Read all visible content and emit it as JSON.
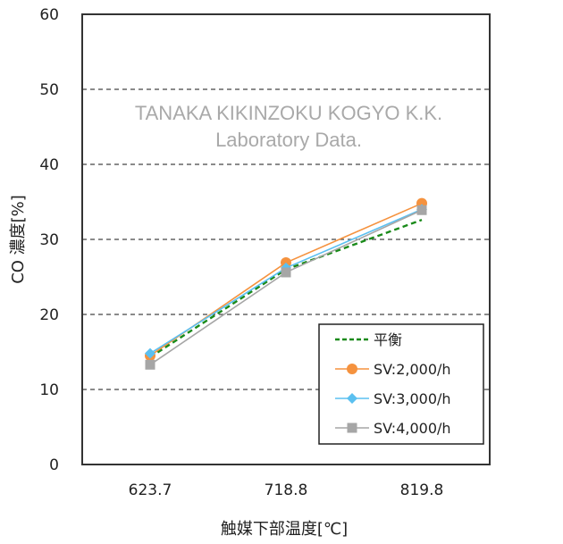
{
  "chart_data": {
    "type": "line",
    "title": "",
    "xlabel": "触媒下部温度[℃]",
    "ylabel": "CO 濃度[%]",
    "categories": [
      "623.7",
      "718.8",
      "819.8"
    ],
    "ylim": [
      0,
      60
    ],
    "yticks": [
      0,
      10,
      20,
      30,
      40,
      50,
      60
    ],
    "grid": {
      "horizontal": true,
      "style": "dashed"
    },
    "legend_position": "lower-right inside plot",
    "series": [
      {
        "name": "平衡",
        "values": [
          14.3,
          26.0,
          32.6
        ],
        "color": "#1a8a1a",
        "style": "dashed",
        "marker": "none"
      },
      {
        "name": "SV:2,000/h",
        "values": [
          14.5,
          26.9,
          34.8
        ],
        "color": "#f5923e",
        "style": "solid",
        "marker": "circle"
      },
      {
        "name": "SV:3,000/h",
        "values": [
          14.8,
          26.2,
          34.0
        ],
        "color": "#5bc0f0",
        "style": "solid",
        "marker": "diamond"
      },
      {
        "name": "SV:4,000/h",
        "values": [
          13.3,
          25.6,
          33.9
        ],
        "color": "#a6a6a6",
        "style": "solid",
        "marker": "square"
      }
    ],
    "annotations": [
      "TANAKA KIKINZOKU KOGYO K.K.",
      "Laboratory Data."
    ]
  },
  "watermark": {
    "line1": "TANAKA KIKINZOKU KOGYO K.K.",
    "line2": "Laboratory Data."
  }
}
